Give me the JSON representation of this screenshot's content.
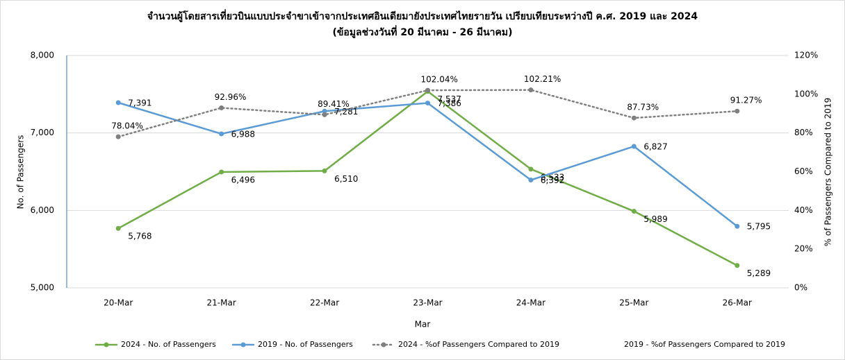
{
  "chart_data": {
    "type": "line",
    "title": "จำนวนผู้โดยสารเที่ยวบินแบบประจำขาเข้าจากประเทศอินเดียมายังประเทศไทยรายวัน  เปรียบเทียบระหว่างปี ค.ศ. 2019 และ 2024",
    "subtitle": "(ข้อมูลช่วงวันที่ 20 มีนาคม - 26 มีนาคม)",
    "x_label": "Mar",
    "y_label": "No. of Passengers",
    "y2_label": "% of Passengers Compared to 2019",
    "categories": [
      "20-Mar",
      "21-Mar",
      "22-Mar",
      "23-Mar",
      "24-Mar",
      "25-Mar",
      "26-Mar"
    ],
    "ylim": [
      5000,
      8000
    ],
    "yticks": [
      {
        "value": 5000,
        "label": "5,000"
      },
      {
        "value": 6000,
        "label": "6,000"
      },
      {
        "value": 7000,
        "label": "7,000"
      },
      {
        "value": 8000,
        "label": "8,000"
      }
    ],
    "y2lim": [
      0,
      120
    ],
    "y2ticks": [
      {
        "value": 0,
        "label": "0%"
      },
      {
        "value": 20,
        "label": "20%"
      },
      {
        "value": 40,
        "label": "40%"
      },
      {
        "value": 60,
        "label": "60%"
      },
      {
        "value": 80,
        "label": "80%"
      },
      {
        "value": 100,
        "label": "100%"
      },
      {
        "value": 120,
        "label": "120%"
      }
    ],
    "grid": true,
    "legend": "bottom",
    "series": [
      {
        "name": "2024 - No. of Passengers",
        "color": "#70ad47",
        "style": "solid",
        "values": [
          5768,
          6496,
          6510,
          7537,
          6533,
          5989,
          5289
        ],
        "value_labels": [
          "5,768",
          "6,496",
          "6,510",
          "7,537",
          "6,533",
          "5,989",
          "5,289"
        ]
      },
      {
        "name": "2019 - No. of Passengers",
        "color": "#5b9bd5",
        "style": "solid",
        "values": [
          7391,
          6988,
          7281,
          7386,
          6392,
          6827,
          5795
        ],
        "value_labels": [
          "7,391",
          "6,988",
          "7,281",
          "7,386",
          "6,392",
          "6,827",
          "5,795"
        ]
      },
      {
        "name": "2024 - %of Passengers Compared to 2019",
        "color": "#7f7f7f",
        "style": "dotted",
        "axis": "y2",
        "values": [
          78.04,
          92.96,
          89.41,
          102.04,
          102.21,
          87.73,
          91.27
        ],
        "value_labels": [
          "78.04%",
          "92.96%",
          "89.41%",
          "102.04%",
          "102.21%",
          "87.73%",
          "91.27%"
        ]
      },
      {
        "name": "2019 - %of Passengers Compared to 2019",
        "axis": "y2",
        "values": [
          null,
          null,
          null,
          null,
          null,
          null,
          null
        ]
      }
    ]
  }
}
